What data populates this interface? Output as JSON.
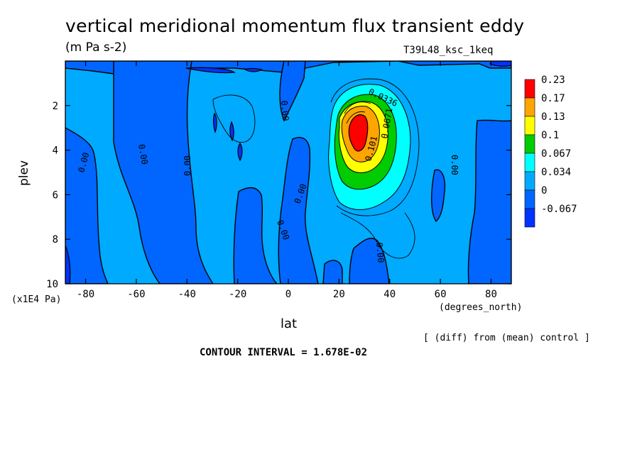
{
  "chart_data": {
    "type": "heatmap",
    "title": "vertical meridional momentum flux transient eddy",
    "subtitle": "(m Pa s-2)",
    "run_label": "T39L48_ksc_1keq",
    "xlabel": "lat",
    "x_units": "(degrees_north)",
    "ylabel": "plev",
    "y_units": "(x1E4 Pa)",
    "x_ticks": [
      "-80",
      "-60",
      "-40",
      "-20",
      "0",
      "20",
      "40",
      "60",
      "80"
    ],
    "y_ticks": [
      "2",
      "4",
      "6",
      "8",
      "10"
    ],
    "xlim": [
      -88,
      88
    ],
    "ylim": [
      10,
      0
    ],
    "note": "[ (diff) from (mean) control ]",
    "contour_interval": "CONTOUR INTERVAL = 1.678E-02",
    "colorbar_levels": [
      "0.23",
      "0.17",
      "0.13",
      "0.1",
      "0.067",
      "0.034",
      "0",
      "-0.067"
    ],
    "colorbar_colors": [
      "#ff0000",
      "#ffa500",
      "#ffff00",
      "#00cc00",
      "#00ffff",
      "#00aaff",
      "#0066ff",
      "#0033ff"
    ],
    "contour_labels": [
      "0.00",
      "0.00",
      "0.00",
      "0.00",
      "0.00",
      "0.00",
      "0.00",
      "0.00",
      "0.0336",
      "0.101",
      "0.0671"
    ],
    "max_center": {
      "lat": 27,
      "plev": 3.0,
      "value": 0.23
    },
    "grid": false
  }
}
